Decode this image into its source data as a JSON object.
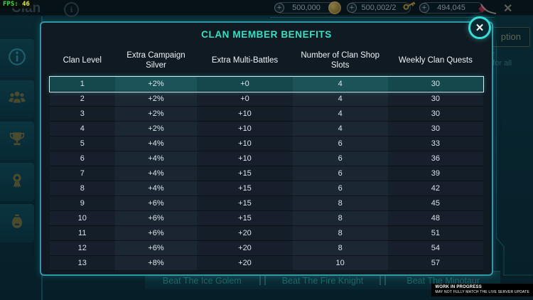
{
  "fps": {
    "label": "FPS:",
    "value": "46"
  },
  "top_bar": {
    "title": "Clan",
    "resources": [
      {
        "name": "silver",
        "value": "500,000"
      },
      {
        "name": "keys",
        "value": "500,002/2"
      },
      {
        "name": "gems",
        "value": "494,045"
      }
    ]
  },
  "modal": {
    "title": "CLAN MEMBER BENEFITS",
    "table": {
      "columns": [
        "Clan Level",
        "Extra Campaign Silver",
        "Extra Multi-Battles",
        "Number of Clan Shop Slots",
        "Weekly Clan Quests"
      ],
      "rows": [
        [
          "1",
          "+2%",
          "+0",
          "4",
          "30"
        ],
        [
          "2",
          "+2%",
          "+0",
          "4",
          "30"
        ],
        [
          "3",
          "+2%",
          "+10",
          "4",
          "30"
        ],
        [
          "4",
          "+2%",
          "+10",
          "4",
          "30"
        ],
        [
          "5",
          "+4%",
          "+10",
          "6",
          "33"
        ],
        [
          "6",
          "+4%",
          "+10",
          "6",
          "36"
        ],
        [
          "7",
          "+4%",
          "+15",
          "6",
          "39"
        ],
        [
          "8",
          "+4%",
          "+15",
          "6",
          "42"
        ],
        [
          "9",
          "+6%",
          "+15",
          "8",
          "45"
        ],
        [
          "10",
          "+6%",
          "+15",
          "8",
          "48"
        ],
        [
          "11",
          "+6%",
          "+20",
          "8",
          "51"
        ],
        [
          "12",
          "+6%",
          "+20",
          "8",
          "54"
        ],
        [
          "13",
          "+8%",
          "+20",
          "10",
          "57"
        ]
      ],
      "highlighted_row": 0
    }
  },
  "sidebar": {
    "icons": [
      "info",
      "members",
      "trophy",
      "medal",
      "money-bag"
    ]
  },
  "background": {
    "right_button_fragment": "ption",
    "right_text_fragment_small": "e",
    "right_text_fragment": "e for all",
    "bottom_buttons": [
      "Beat The Ice Golem",
      "Beat The Fire Knight",
      "Beat The Minotaur"
    ]
  },
  "footer_notice": {
    "line1": "WORK IN PROGRESS",
    "line2": "MAY NOT FULLY MATCH THE LIVE SERVER UPDATE"
  },
  "colors": {
    "accent": "#35e0c3",
    "modal_border": "#2e98a4",
    "highlight_border": "#cfeff3",
    "gem": "#c22850",
    "gold": "#c9a43c"
  }
}
